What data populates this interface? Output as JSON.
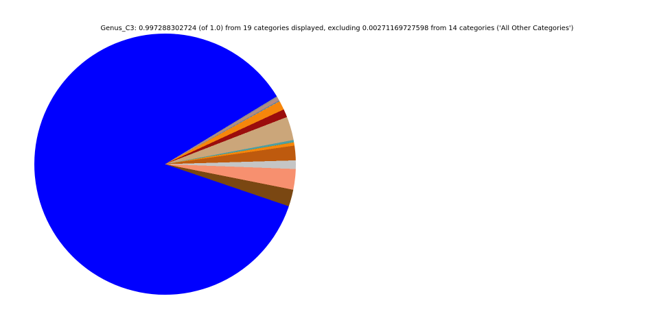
{
  "title": "Genus_C3: 0.997288302724 (of 1.0) from 19 categories displayed, excluding 0.00271169727598 from 14 categories ('All Other Categories')",
  "chart_data": {
    "type": "pie",
    "title": "Genus_C3: 0.997288302724 (of 1.0) from 19 categories displayed, excluding 0.00271169727598 from 14 categories ('All Other Categories')",
    "displayed_fraction": "0.997288302724",
    "displayed_of": "1.0",
    "categories_displayed": 19,
    "excluded_fraction": "0.00271169727598",
    "categories_excluded": 14,
    "excluded_group_label": "All Other Categories",
    "legend_position": "none",
    "labels_on_slices": false,
    "rotation_deg_from_north_cw": 58.7,
    "slices": [
      {
        "name": "slice-01",
        "color": "#8D8D8B",
        "fraction": 0.00167
      },
      {
        "name": "slice-02",
        "color": "#B38B83",
        "fraction": 0.00389
      },
      {
        "name": "slice-03",
        "color": "#68819E",
        "fraction": 0.00111
      },
      {
        "name": "slice-04",
        "color": "#9ACD32",
        "fraction": 0.0001
      },
      {
        "name": "slice-05",
        "color": "#4682B4",
        "fraction": 0.0001
      },
      {
        "name": "slice-06",
        "color": "#DDA0DD",
        "fraction": 0.0001
      },
      {
        "name": "slice-07",
        "color": "#F6860B",
        "fraction": 0.01111
      },
      {
        "name": "slice-08",
        "color": "#9B0D0D",
        "fraction": 0.01
      },
      {
        "name": "slice-09",
        "color": "#CBA67A",
        "fraction": 0.02917
      },
      {
        "name": "slice-10",
        "color": "#4F9EA2",
        "fraction": 0.00278
      },
      {
        "name": "slice-11",
        "color": "#2E8B57",
        "fraction": 0.0001
      },
      {
        "name": "slice-12",
        "color": "#DAA520",
        "fraction": 0.0001
      },
      {
        "name": "slice-13",
        "color": "#808000",
        "fraction": 0.0001
      },
      {
        "name": "slice-14",
        "color": "#F6860B",
        "fraction": 0.00389
      },
      {
        "name": "slice-15",
        "color": "#BE5A0E",
        "fraction": 0.01806
      },
      {
        "name": "slice-16",
        "color": "#C5C5C5",
        "fraction": 0.01056
      },
      {
        "name": "slice-17",
        "color": "#F7906F",
        "fraction": 0.02556
      },
      {
        "name": "slice-18",
        "color": "#7A4712",
        "fraction": 0.02083
      },
      {
        "name": "slice-19",
        "color": "#0000FF",
        "fraction": 0.86077
      }
    ]
  }
}
